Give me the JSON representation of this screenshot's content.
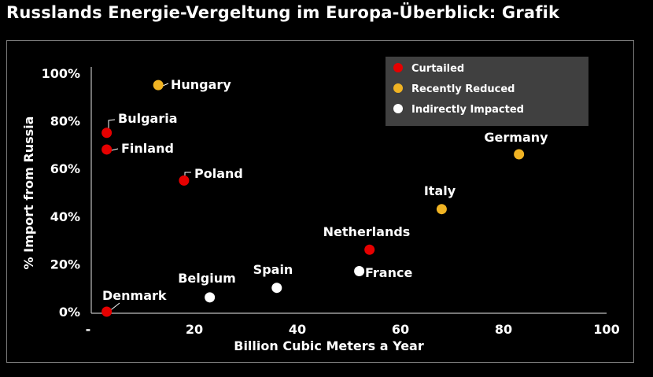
{
  "page_title": "Russlands Energie-Vergeltung im Europa-Überblick: Grafik",
  "chart_data": {
    "type": "scatter",
    "title": "",
    "xlabel": "Billion Cubic Meters a Year",
    "ylabel": "% Import from Russia",
    "xlim": [
      0,
      100
    ],
    "ylim": [
      0,
      100
    ],
    "x_tick_labels": [
      "-",
      "20",
      "40",
      "60",
      "80",
      "100"
    ],
    "y_tick_labels": [
      "0%",
      "20%",
      "40%",
      "60%",
      "80%",
      "100%"
    ],
    "legend_position": "top-right",
    "grid": false,
    "legend": [
      {
        "name": "Curtailed",
        "color": "#e60000"
      },
      {
        "name": "Recently Reduced",
        "color": "#f0b323"
      },
      {
        "name": "Indirectly Impacted",
        "color": "#ffffff"
      }
    ],
    "points": [
      {
        "label": "Hungary",
        "x": 13,
        "y": 95,
        "category": 1
      },
      {
        "label": "Bulgaria",
        "x": 3,
        "y": 75,
        "category": 0
      },
      {
        "label": "Finland",
        "x": 3,
        "y": 68,
        "category": 0
      },
      {
        "label": "Poland",
        "x": 18,
        "y": 55,
        "category": 0
      },
      {
        "label": "Germany",
        "x": 83,
        "y": 66,
        "category": 1
      },
      {
        "label": "Italy",
        "x": 68,
        "y": 43,
        "category": 1
      },
      {
        "label": "Netherlands",
        "x": 54,
        "y": 26,
        "category": 0
      },
      {
        "label": "France",
        "x": 52,
        "y": 17,
        "category": 2
      },
      {
        "label": "Spain",
        "x": 36,
        "y": 10,
        "category": 2
      },
      {
        "label": "Belgium",
        "x": 23,
        "y": 6,
        "category": 2
      },
      {
        "label": "Denmark",
        "x": 3,
        "y": 0,
        "category": 0
      }
    ]
  }
}
